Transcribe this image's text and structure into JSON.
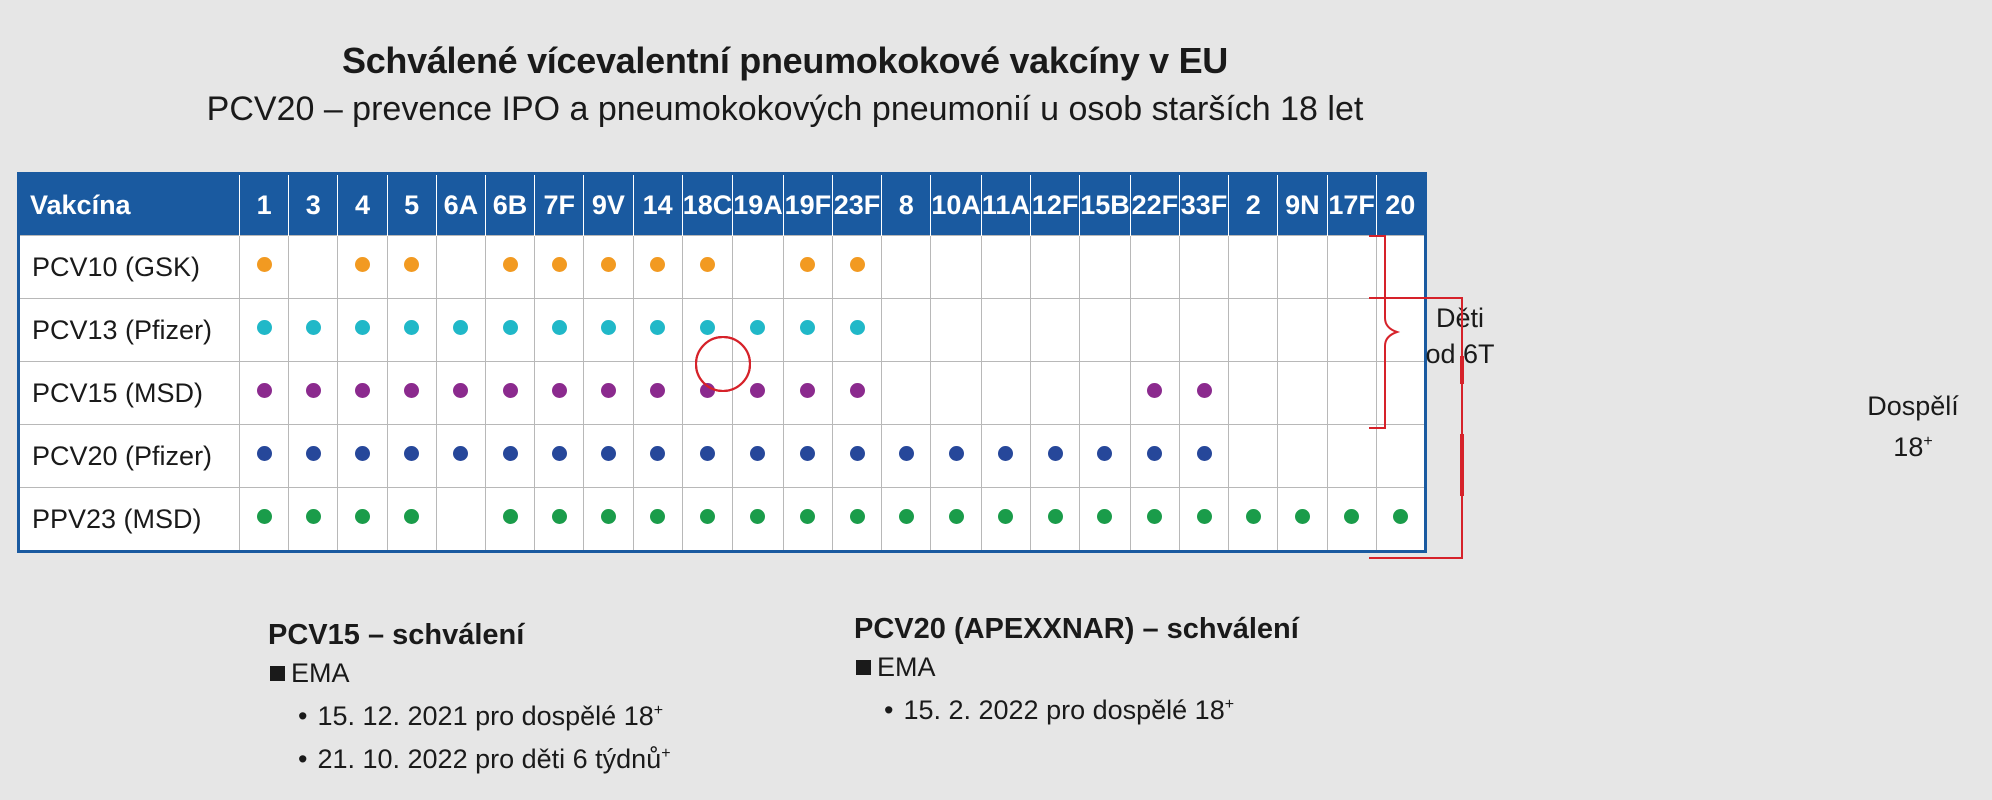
{
  "title": "Schválené vícevalentní pneumokokové vakcíny v EU",
  "subtitle": "PCV20 – prevence IPO a pneumokokových pneumonií u osob starších 18 let",
  "table": {
    "header_label": "Vakcína",
    "serotypes": [
      "1",
      "3",
      "4",
      "5",
      "6A",
      "6B",
      "7F",
      "9V",
      "14",
      "18C",
      "19A",
      "19F",
      "23F",
      "8",
      "10A",
      "11A",
      "12F",
      "15B",
      "22F",
      "33F",
      "2",
      "9N",
      "17F",
      "20"
    ],
    "highlighted_serotypes": [
      "3",
      "19A",
      "8",
      "22F"
    ],
    "rows": [
      {
        "name": "PCV10 (GSK)",
        "color": "#f29a21",
        "serotypes": [
          "1",
          "4",
          "5",
          "6B",
          "7F",
          "9V",
          "14",
          "18C",
          "19F",
          "23F"
        ]
      },
      {
        "name": "PCV13 (Pfizer)",
        "color": "#20b8c8",
        "serotypes": [
          "1",
          "3",
          "4",
          "5",
          "6A",
          "6B",
          "7F",
          "9V",
          "14",
          "18C",
          "19A",
          "19F",
          "23F"
        ]
      },
      {
        "name": "PCV15 (MSD)",
        "color": "#8b2a8e",
        "serotypes": [
          "1",
          "3",
          "4",
          "5",
          "6A",
          "6B",
          "7F",
          "9V",
          "14",
          "18C",
          "19A",
          "19F",
          "23F",
          "22F",
          "33F"
        ]
      },
      {
        "name": "PCV20 (Pfizer)",
        "color": "#26479a",
        "serotypes": [
          "1",
          "3",
          "4",
          "5",
          "6A",
          "6B",
          "7F",
          "9V",
          "14",
          "18C",
          "19A",
          "19F",
          "23F",
          "8",
          "10A",
          "11A",
          "12F",
          "15B",
          "22F",
          "33F"
        ]
      },
      {
        "name": "PPV23 (MSD)",
        "color": "#1a9c4a",
        "serotypes": [
          "1",
          "3",
          "4",
          "5",
          "6B",
          "7F",
          "9V",
          "14",
          "18C",
          "19A",
          "19F",
          "23F",
          "8",
          "10A",
          "11A",
          "12F",
          "15B",
          "22F",
          "33F",
          "2",
          "9N",
          "17F",
          "20"
        ]
      }
    ]
  },
  "brackets": {
    "children": {
      "line1": "Děti",
      "line2": "od 6T"
    },
    "adults": {
      "line1": "Dospělí",
      "line2": "18",
      "line2_sup": "+"
    },
    "color": "#d6222a"
  },
  "approvals": [
    {
      "heading": "PCV15 – schválení",
      "agency": "EMA",
      "items": [
        {
          "text": "15. 12. 2021 pro dospělé 18",
          "sup": "+"
        },
        {
          "text": "21. 10. 2022 pro děti 6 týdnů",
          "sup": "+"
        }
      ]
    },
    {
      "heading": "PCV20 (APEXXNAR) – schválení",
      "agency": "EMA",
      "items": [
        {
          "text": "15. 2. 2022 pro dospělé 18",
          "sup": "+"
        }
      ]
    }
  ]
}
